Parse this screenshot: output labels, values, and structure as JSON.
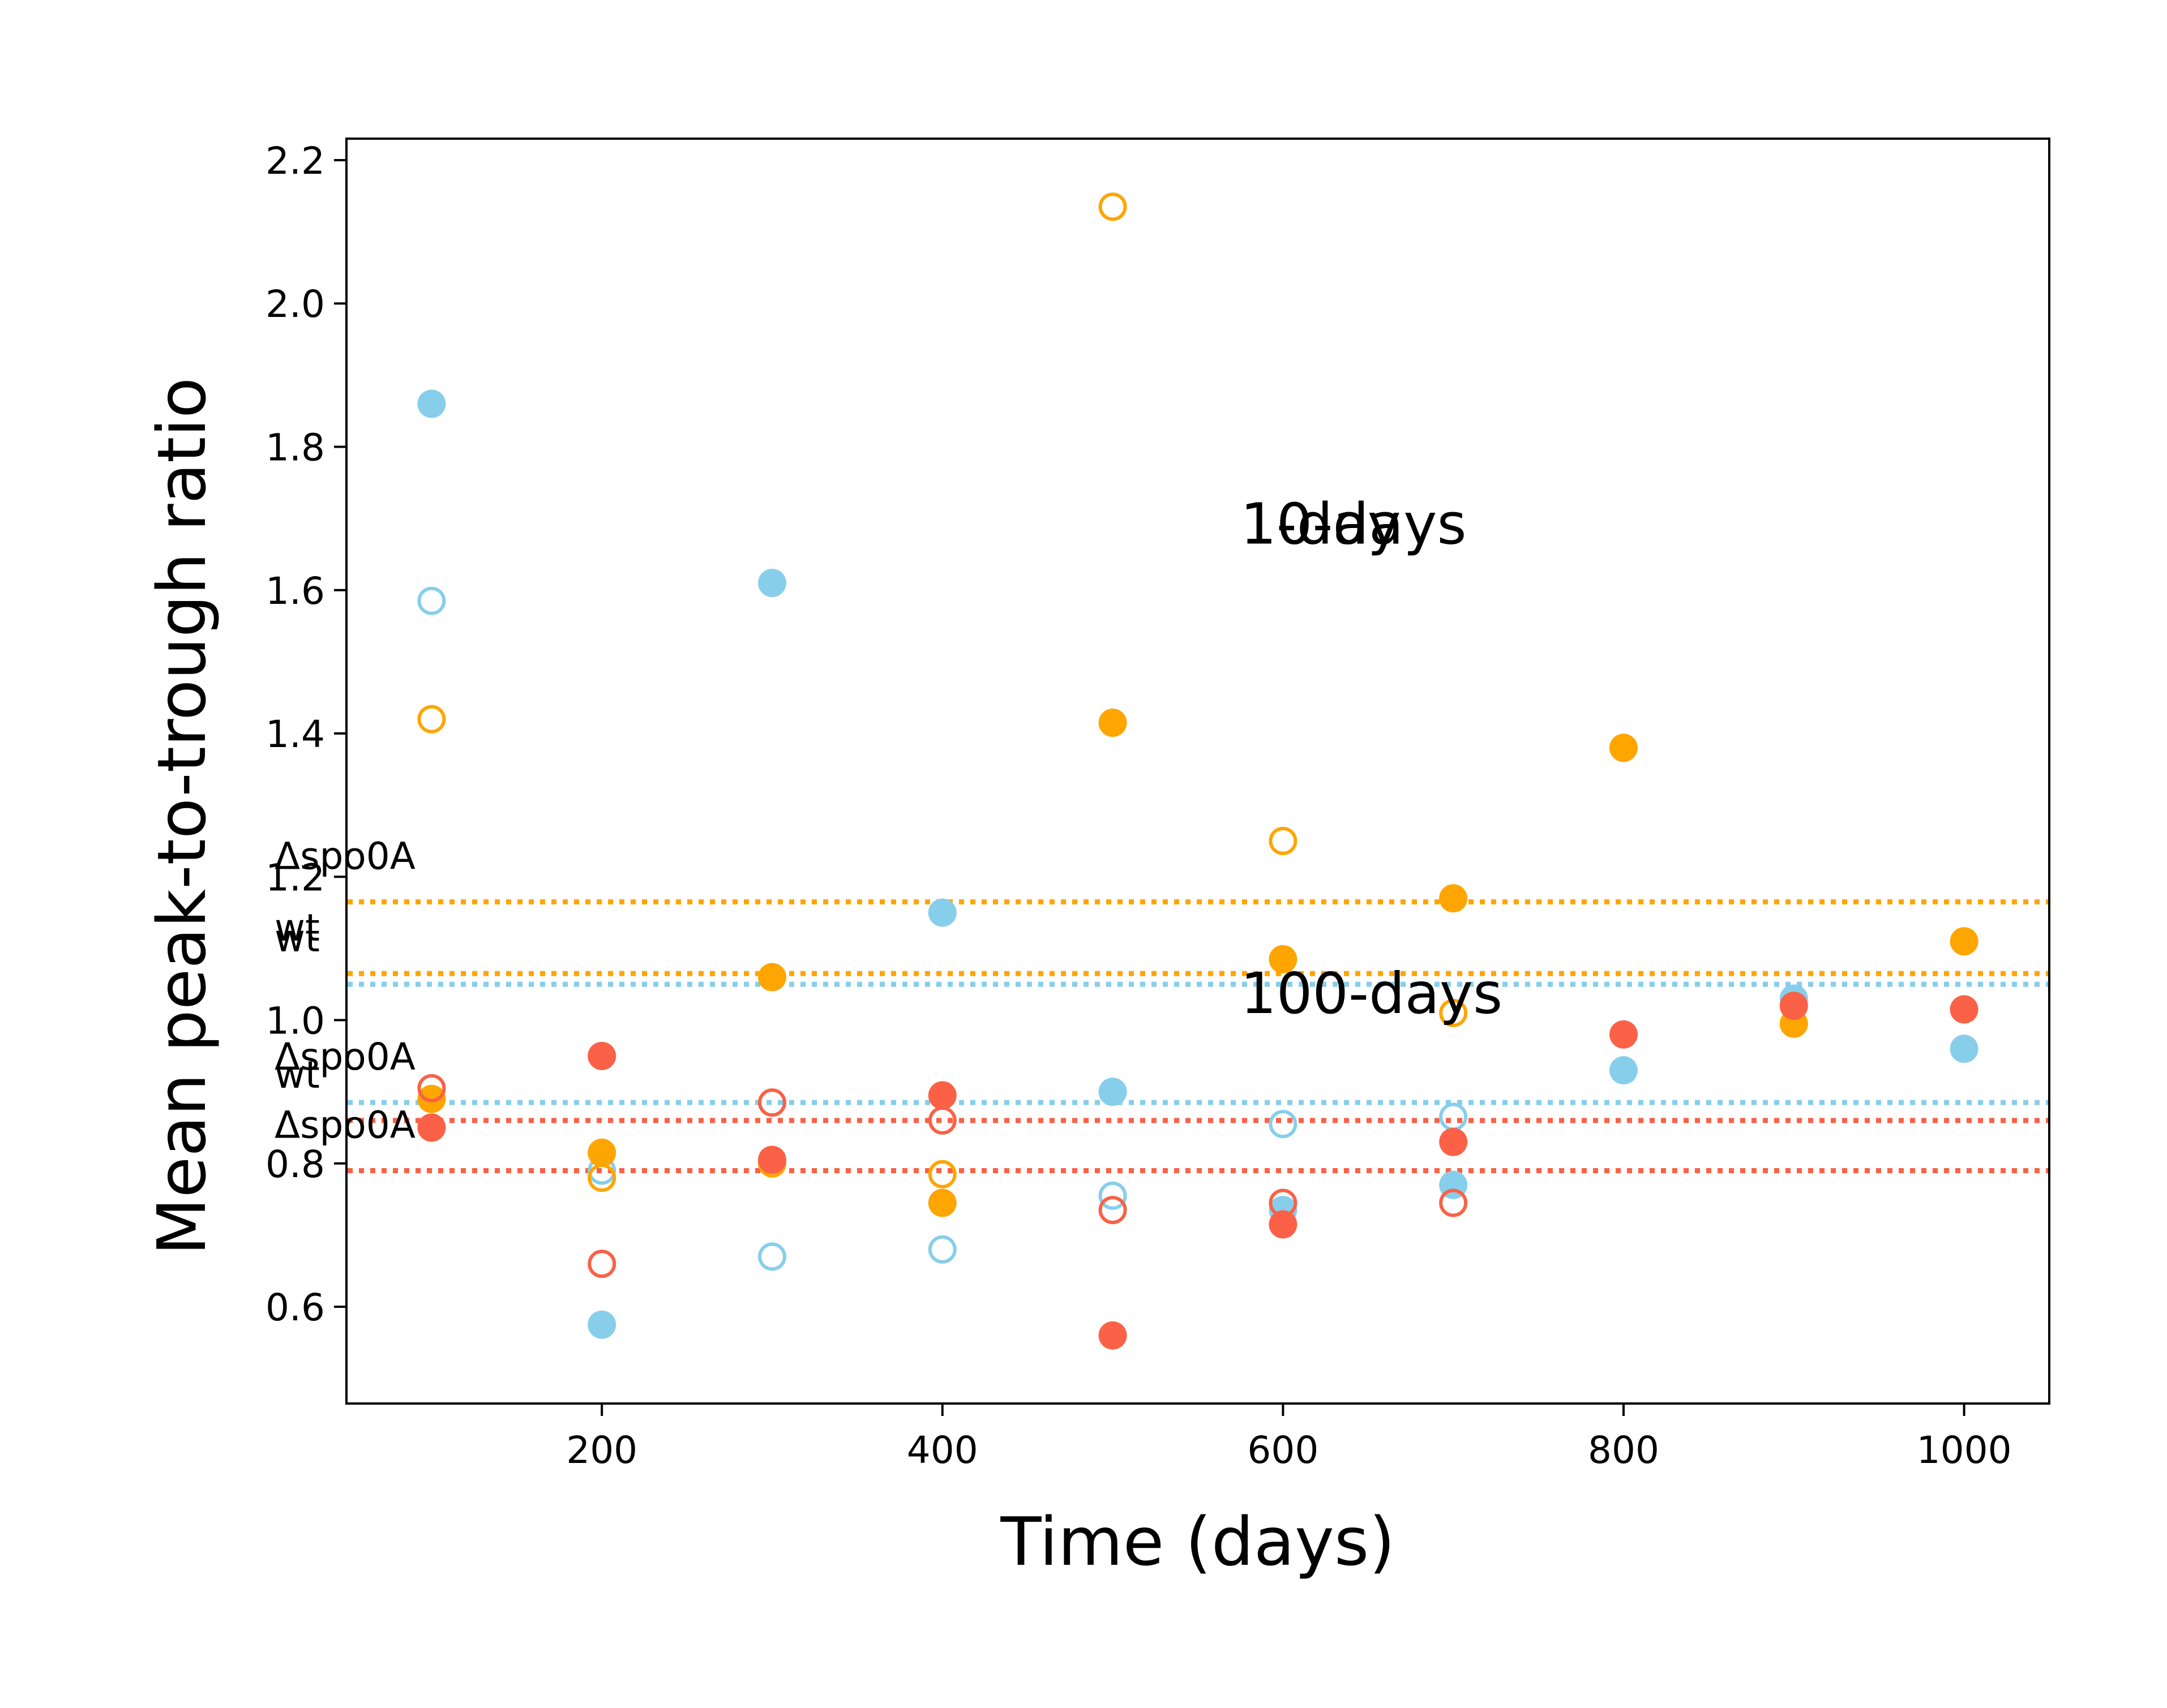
{
  "chart_data": {
    "type": "scatter",
    "title": "",
    "xlabel": "Time (days)",
    "ylabel": "Mean peak-to-trough ratio",
    "xlim": [
      50,
      1050
    ],
    "ylim": [
      0.465,
      2.23
    ],
    "xticks": [
      200,
      400,
      600,
      800,
      1000
    ],
    "yticks": [
      0.6,
      0.8,
      1.0,
      1.2,
      1.4,
      1.6,
      1.8,
      2.0,
      2.2
    ],
    "grid": false,
    "colors": {
      "blue": "#87CEEB",
      "orange": "#FFA500",
      "red": "#FA6146"
    },
    "series": [
      {
        "color": "blue",
        "marker": "filled",
        "x": [
          100,
          200,
          300,
          400,
          500,
          600,
          700,
          800,
          900,
          1000
        ],
        "y": [
          1.86,
          0.575,
          1.61,
          1.15,
          0.9,
          0.735,
          0.77,
          0.93,
          1.03,
          0.96
        ]
      },
      {
        "color": "blue",
        "marker": "open",
        "x": [
          100,
          200,
          300,
          400,
          500,
          600,
          700
        ],
        "y": [
          1.585,
          0.79,
          0.67,
          0.68,
          0.755,
          0.855,
          0.865
        ]
      },
      {
        "color": "orange",
        "marker": "filled",
        "x": [
          100,
          200,
          300,
          400,
          500,
          600,
          700,
          800,
          900,
          1000
        ],
        "y": [
          0.89,
          0.815,
          1.06,
          0.745,
          1.415,
          1.085,
          1.17,
          1.38,
          0.995,
          1.11
        ]
      },
      {
        "color": "orange",
        "marker": "open",
        "x": [
          100,
          200,
          300,
          400,
          500,
          600,
          700
        ],
        "y": [
          1.42,
          0.78,
          0.8,
          0.785,
          2.135,
          1.25,
          1.01
        ]
      },
      {
        "color": "red",
        "marker": "filled",
        "x": [
          100,
          200,
          300,
          400,
          500,
          600,
          700,
          800,
          900,
          1000
        ],
        "y": [
          0.85,
          0.95,
          0.805,
          0.895,
          0.56,
          0.715,
          0.83,
          0.98,
          1.02,
          1.015
        ]
      },
      {
        "color": "red",
        "marker": "open",
        "x": [
          100,
          200,
          300,
          400,
          500,
          600,
          700
        ],
        "y": [
          0.905,
          0.66,
          0.885,
          0.86,
          0.735,
          0.745,
          0.745
        ]
      }
    ],
    "reference_lines": [
      {
        "y": 1.165,
        "color": "orange",
        "style": "dotted",
        "label": "Δspo0A"
      },
      {
        "y": 1.065,
        "color": "orange",
        "style": "dotted",
        "label": "wt"
      },
      {
        "y": 1.05,
        "color": "blue",
        "style": "dotted",
        "label": "wt"
      },
      {
        "y": 0.885,
        "color": "blue",
        "style": "dotted",
        "label": "Δspo0A"
      },
      {
        "y": 0.86,
        "color": "red",
        "style": "dotted",
        "label": "wt"
      },
      {
        "y": 0.79,
        "color": "red",
        "style": "dotted",
        "label": "Δspo0A"
      }
    ],
    "annotations": [
      {
        "text": "10-days",
        "x": 575,
        "y": 1.665
      },
      {
        "text": "1-day",
        "x": 575,
        "y": 1.665
      },
      {
        "text": "100-days",
        "x": 575,
        "y": 1.01
      }
    ]
  }
}
